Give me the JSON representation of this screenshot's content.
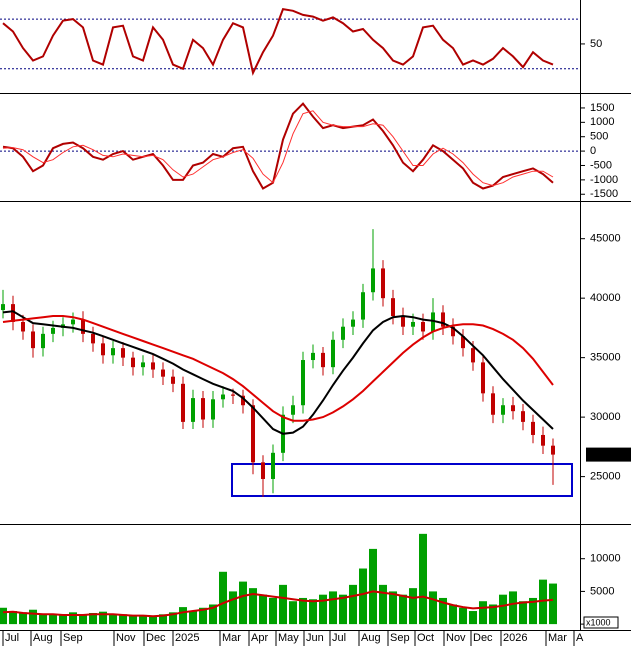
{
  "chart_data": {
    "type": "stock",
    "x": [
      0,
      1,
      2,
      3,
      4,
      5,
      6,
      7,
      8,
      9,
      10,
      11,
      12,
      13,
      14,
      15,
      16,
      17,
      18,
      19,
      20,
      21,
      22,
      23,
      24,
      25,
      26,
      27,
      28,
      29,
      30,
      31,
      32,
      33,
      34,
      35,
      36,
      37,
      38,
      39,
      40,
      41,
      42,
      43,
      44,
      45,
      46,
      47,
      48,
      49,
      50,
      51,
      52,
      53,
      54,
      55
    ],
    "xlim": [
      -0.3,
      57.7
    ],
    "xticks": [
      {
        "value": 0,
        "label": "Jul"
      },
      {
        "value": 2.8,
        "label": "Aug"
      },
      {
        "value": 5.8,
        "label": "Sep"
      },
      {
        "value": 11.1,
        "label": "Nov"
      },
      {
        "value": 14.1,
        "label": "Dec"
      },
      {
        "value": 17,
        "label": "2025"
      },
      {
        "value": 21.7,
        "label": "Mar"
      },
      {
        "value": 24.6,
        "label": "Apr"
      },
      {
        "value": 27.3,
        "label": "May"
      },
      {
        "value": 30.1,
        "label": "Jun"
      },
      {
        "value": 32.7,
        "label": "Jul"
      },
      {
        "value": 35.6,
        "label": "Aug"
      },
      {
        "value": 38.5,
        "label": "Sep"
      },
      {
        "value": 41.2,
        "label": "Oct"
      },
      {
        "value": 44.1,
        "label": "Nov"
      },
      {
        "value": 46.8,
        "label": "Dec"
      },
      {
        "value": 49.8,
        "label": "2026"
      },
      {
        "value": 54.3,
        "label": "Mar"
      },
      {
        "value": 57.1,
        "label": "A"
      }
    ],
    "oscillator": {
      "ylim": [
        -8,
        103
      ],
      "yticks": [
        50
      ],
      "levels": [
        80,
        20
      ],
      "series": [
        {
          "color": "#b00000",
          "values": [
            75,
            65,
            45,
            30,
            35,
            60,
            78,
            80,
            70,
            30,
            25,
            70,
            72,
            35,
            30,
            70,
            55,
            25,
            20,
            55,
            45,
            25,
            55,
            75,
            70,
            15,
            40,
            60,
            92,
            90,
            85,
            83,
            78,
            82,
            75,
            65,
            68,
            55,
            45,
            30,
            25,
            35,
            70,
            72,
            55,
            45,
            25,
            30,
            25,
            32,
            45,
            35,
            22,
            40,
            30,
            25
          ]
        }
      ]
    },
    "macd": {
      "ylim": [
        -1700,
        1950
      ],
      "yticks": [
        1500,
        1000,
        500,
        0,
        -500,
        -1000,
        -1500
      ],
      "levels": [
        0
      ],
      "series": [
        {
          "color": "#b00000",
          "values": [
            150,
            100,
            -200,
            -700,
            -500,
            100,
            250,
            300,
            100,
            -200,
            -300,
            -100,
            0,
            -300,
            -200,
            -100,
            -500,
            -1000,
            -1000,
            -500,
            -400,
            -100,
            -200,
            100,
            150,
            -700,
            -1300,
            -1100,
            400,
            1300,
            1650,
            1200,
            800,
            900,
            800,
            850,
            900,
            1100,
            700,
            200,
            -400,
            -700,
            -300,
            200,
            0,
            -300,
            -600,
            -1100,
            -1300,
            -1200,
            -900,
            -800,
            -700,
            -600,
            -800,
            -1100
          ]
        },
        {
          "color": "#ff3030",
          "values": [
            100,
            120,
            50,
            -200,
            -400,
            -300,
            -50,
            150,
            200,
            50,
            -150,
            -200,
            -100,
            -150,
            -200,
            -150,
            -300,
            -650,
            -900,
            -800,
            -550,
            -300,
            -200,
            -50,
            50,
            -250,
            -800,
            -1100,
            -400,
            600,
            1300,
            1400,
            1000,
            900,
            850,
            850,
            850,
            950,
            900,
            500,
            0,
            -500,
            -500,
            -100,
            100,
            -100,
            -400,
            -800,
            -1100,
            -1200,
            -1100,
            -900,
            -800,
            -700,
            -700,
            -900
          ]
        }
      ]
    },
    "price": {
      "ylim": [
        21100,
        48000
      ],
      "yticks": [
        45000,
        40000,
        35000,
        30000,
        25000
      ],
      "up_color": "#00a000",
      "down_color": "#c00000",
      "open": [
        39000,
        39500,
        38000,
        37200,
        35800,
        37000,
        37500,
        37800,
        38200,
        37000,
        36200,
        35200,
        35800,
        35000,
        34200,
        34600,
        34000,
        33400,
        32800,
        29600,
        31600,
        29800,
        31500,
        31900,
        31800,
        31000,
        26200,
        24800,
        27000,
        30200,
        31000,
        34800,
        35400,
        34200,
        36500,
        37600,
        38200,
        40500,
        42500,
        40000,
        38500,
        37600,
        38000,
        37200,
        38800,
        37600,
        36800,
        35800,
        34600,
        32000,
        30200,
        31000,
        30500,
        29600,
        28500,
        27600
      ],
      "high": [
        40700,
        40200,
        38600,
        37800,
        37600,
        38100,
        38400,
        38800,
        38900,
        37600,
        36800,
        36400,
        36300,
        35500,
        35200,
        35300,
        34600,
        34000,
        33400,
        32300,
        32200,
        32200,
        32600,
        32400,
        32300,
        31500,
        26800,
        27700,
        30900,
        31800,
        35500,
        36100,
        35900,
        37200,
        38300,
        38900,
        41200,
        45800,
        43200,
        40700,
        39200,
        38700,
        38700,
        40000,
        39400,
        38300,
        37400,
        36400,
        35200,
        32600,
        31600,
        31700,
        31100,
        30200,
        29200,
        28200
      ],
      "low": [
        38300,
        37300,
        36500,
        35000,
        35100,
        36300,
        36800,
        37100,
        36300,
        35500,
        34500,
        34500,
        34300,
        33500,
        33500,
        33300,
        32700,
        32100,
        29000,
        29000,
        29100,
        29100,
        30800,
        31100,
        30300,
        25200,
        23300,
        23600,
        26300,
        29500,
        30300,
        34100,
        33500,
        33600,
        35800,
        36900,
        37500,
        39800,
        39300,
        37800,
        36900,
        36900,
        36500,
        36500,
        36900,
        36100,
        35100,
        33900,
        31300,
        29500,
        29500,
        29800,
        28900,
        27800,
        26900,
        24300
      ],
      "close": [
        39500,
        38000,
        37200,
        35800,
        37000,
        37500,
        37800,
        38200,
        37000,
        36200,
        35200,
        35800,
        35000,
        34200,
        34600,
        34000,
        33400,
        32800,
        29600,
        31600,
        29800,
        31500,
        31900,
        31800,
        31000,
        26200,
        24800,
        27000,
        30200,
        31000,
        34800,
        35400,
        34200,
        36500,
        37600,
        38200,
        40500,
        42500,
        40000,
        38500,
        37600,
        38000,
        37200,
        38800,
        37600,
        36800,
        35800,
        34600,
        32000,
        30200,
        31000,
        30500,
        29600,
        28500,
        27600,
        26850
      ],
      "lines": [
        {
          "color": "#000000",
          "values": [
            38800,
            38900,
            38400,
            37900,
            37800,
            37700,
            37600,
            37500,
            37300,
            37100,
            36800,
            36500,
            36200,
            35900,
            35600,
            35300,
            34900,
            34500,
            34000,
            33600,
            33200,
            32800,
            32500,
            32200,
            31600,
            30800,
            29900,
            29000,
            28600,
            28700,
            29200,
            30200,
            31400,
            32700,
            33900,
            35000,
            36200,
            37300,
            38000,
            38400,
            38500,
            38400,
            38200,
            38100,
            37900,
            37500,
            36800,
            36000,
            35200,
            34200,
            33200,
            32300,
            31400,
            30600,
            29800,
            29000
          ]
        },
        {
          "color": "#dd0000",
          "values": [
            38000,
            38100,
            38200,
            38300,
            38400,
            38500,
            38500,
            38400,
            38200,
            37900,
            37600,
            37300,
            37000,
            36700,
            36400,
            36100,
            35800,
            35500,
            35200,
            34900,
            34500,
            34100,
            33700,
            33200,
            32600,
            31900,
            31200,
            30500,
            30000,
            29700,
            29700,
            29800,
            30000,
            30400,
            30900,
            31500,
            32200,
            33000,
            33800,
            34600,
            35400,
            36100,
            36700,
            37200,
            37500,
            37700,
            37800,
            37800,
            37700,
            37400,
            37000,
            36500,
            35800,
            34900,
            33800,
            32700
          ]
        }
      ],
      "last_price": {
        "value": 26850,
        "label": "26850.00"
      }
    },
    "volume": {
      "ylim": [
        -900,
        15000
      ],
      "yticks": [
        0,
        5000,
        10000
      ],
      "unit_label": "x1000",
      "color": "#00a000",
      "values": [
        2500,
        2000,
        1800,
        2200,
        1500,
        1600,
        1400,
        1800,
        1500,
        1700,
        1900,
        1600,
        1500,
        1300,
        1400,
        1200,
        1500,
        1800,
        2600,
        2000,
        2500,
        3000,
        8000,
        5000,
        6500,
        5500,
        4500,
        4000,
        6000,
        3500,
        4000,
        3800,
        4500,
        5000,
        4500,
        6000,
        8500,
        11500,
        6000,
        5000,
        4500,
        5500,
        13800,
        5000,
        4000,
        3000,
        2500,
        2000,
        3500,
        3000,
        4500,
        5000,
        3500,
        4000,
        6800,
        6200
      ],
      "ma": {
        "color": "#cc0000",
        "values": [
          1800,
          1900,
          1700,
          1600,
          1500,
          1500,
          1400,
          1400,
          1400,
          1500,
          1500,
          1500,
          1400,
          1300,
          1300,
          1200,
          1300,
          1500,
          1800,
          2000,
          2200,
          2500,
          3200,
          3800,
          4300,
          4600,
          4400,
          4200,
          4000,
          3800,
          3600,
          3500,
          3600,
          3800,
          4000,
          4300,
          4600,
          5000,
          4800,
          4600,
          4300,
          4000,
          4200,
          3800,
          3300,
          2900,
          2600,
          2400,
          2500,
          2600,
          2800,
          3100,
          3300,
          3400,
          3600,
          3700
        ]
      }
    }
  }
}
